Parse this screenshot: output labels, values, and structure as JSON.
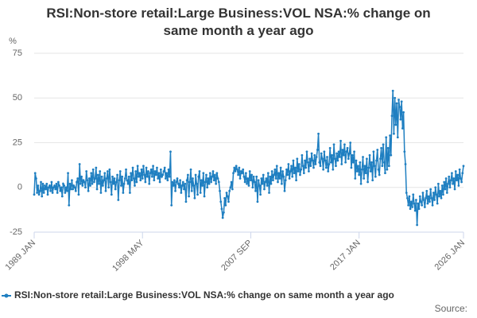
{
  "chart_data": {
    "type": "line",
    "title": "RSI:Non-store retail:Large Business:VOL NSA:% change on same month a year ago",
    "y_label": "%",
    "source": "Source:",
    "categories": [
      "1989 JAN",
      null,
      null,
      null,
      null,
      null,
      null,
      null,
      null,
      null,
      null,
      null,
      null,
      null,
      null,
      null,
      null,
      null,
      null,
      null,
      null,
      null,
      null,
      null,
      null,
      null,
      null,
      null,
      null,
      null,
      null,
      null,
      null,
      null,
      null,
      null,
      null,
      null,
      null,
      null,
      null,
      null,
      null,
      null,
      null,
      null,
      null,
      null,
      null,
      null,
      null,
      null,
      null,
      null,
      null,
      null,
      null,
      null,
      null,
      null,
      null,
      null,
      null,
      null,
      null,
      null,
      null,
      null,
      null,
      null,
      null,
      null,
      null,
      null,
      null,
      null,
      null,
      null,
      null,
      null,
      null,
      null,
      null,
      null,
      null,
      null,
      null,
      null,
      null,
      null,
      null,
      null,
      null,
      null,
      null,
      null,
      null,
      null,
      null,
      null,
      null,
      null,
      null,
      null,
      null,
      null,
      null,
      null,
      null,
      null,
      null,
      null,
      "1998 MAY",
      null,
      null,
      null,
      null,
      null,
      null,
      null,
      null,
      null,
      null,
      null,
      null,
      null,
      null,
      null,
      null,
      null,
      null,
      null,
      null,
      null,
      null,
      null,
      null,
      null,
      null,
      null,
      null,
      null,
      null,
      null,
      null,
      null,
      null,
      null,
      null,
      null,
      null,
      null,
      null,
      null,
      null,
      null,
      null,
      null,
      null,
      null,
      null,
      null,
      null,
      null,
      null,
      null,
      null,
      null,
      null,
      null,
      null,
      null,
      null,
      null,
      null,
      null,
      null,
      null,
      null,
      null,
      null,
      null,
      null,
      null,
      null,
      null,
      null,
      null,
      null,
      null,
      null,
      null,
      null,
      null,
      null,
      null,
      null,
      null,
      null,
      null,
      null,
      null,
      null,
      null,
      null,
      null,
      null,
      null,
      null,
      null,
      null,
      null,
      null,
      null,
      null,
      null,
      null,
      null,
      null,
      null,
      null,
      null,
      null,
      null,
      "2007 SEP",
      null,
      null,
      null,
      null,
      null,
      null,
      null,
      null,
      null,
      null,
      null,
      null,
      null,
      null,
      null,
      null,
      null,
      null,
      null,
      null,
      null,
      null,
      null,
      null,
      null,
      null,
      null,
      null,
      null,
      null,
      null,
      null,
      null,
      null,
      null,
      null,
      null,
      null,
      null,
      null,
      null,
      null,
      null,
      null,
      null,
      null,
      null,
      null,
      null,
      null,
      null,
      null,
      null,
      null,
      null,
      null,
      null,
      null,
      null,
      null,
      null,
      null,
      null,
      null,
      null,
      null,
      null,
      null,
      null,
      null,
      null,
      null,
      null,
      null,
      null,
      null,
      null,
      null,
      null,
      null,
      null,
      null,
      null,
      null,
      null,
      null,
      null,
      null,
      null,
      null,
      null,
      null,
      null,
      null,
      null,
      null,
      null,
      null,
      null,
      null,
      null,
      null,
      null,
      null,
      null,
      null,
      null,
      null,
      null,
      null,
      null,
      "2017 JAN",
      null,
      null,
      null,
      null,
      null,
      null,
      null,
      null,
      null,
      null,
      null,
      null,
      null,
      null,
      null,
      null,
      null,
      null,
      null,
      null,
      null,
      null,
      null,
      null,
      null,
      null,
      null,
      null,
      null,
      null,
      null,
      null,
      null,
      null,
      null,
      null,
      null,
      null,
      null,
      null,
      null,
      null,
      null,
      null,
      null,
      null,
      null,
      null,
      null,
      null,
      null,
      null,
      null,
      null,
      null,
      null,
      null,
      null,
      null,
      null,
      null,
      null,
      null,
      null,
      null,
      null,
      null,
      null,
      null,
      null,
      null,
      null,
      null,
      null,
      null,
      null,
      null,
      null,
      null,
      null,
      null,
      null,
      null,
      null,
      null,
      null,
      null,
      null,
      null,
      null,
      null,
      null,
      null,
      null,
      null,
      null,
      null,
      null,
      null,
      null,
      null,
      null,
      null,
      null,
      null,
      null,
      null,
      "2026 JAN"
    ],
    "series": [
      {
        "name": "RSI:Non-store retail:Large Business:VOL NSA:% change on same month a year ago",
        "color": "#1f7fc1",
        "values": [
          -4,
          8,
          5,
          -3,
          1,
          -4,
          -2,
          3,
          -5,
          2,
          -3,
          1,
          -1,
          2,
          -4,
          0,
          1,
          -2,
          3,
          -3,
          0,
          1,
          -1,
          2,
          -3,
          3,
          1,
          -2,
          0,
          -5,
          2,
          1,
          -3,
          0,
          -2,
          8,
          -10,
          2,
          -1,
          4,
          -1,
          1,
          0,
          -2,
          3,
          5,
          -4,
          13,
          2,
          6,
          1,
          4,
          3,
          0,
          9,
          4,
          -2,
          5,
          1,
          8,
          2,
          10,
          3,
          5,
          11,
          -1,
          7,
          2,
          9,
          -3,
          6,
          1,
          4,
          8,
          -2,
          5,
          9,
          0,
          10,
          3,
          -4,
          6,
          2,
          5,
          -1,
          3,
          7,
          -7,
          4,
          9,
          1,
          6,
          -3,
          2,
          5,
          10,
          4,
          2,
          6,
          -3,
          8,
          4,
          11,
          5,
          1,
          9,
          3,
          12,
          6,
          8,
          4,
          10,
          5,
          12,
          7,
          3,
          11,
          6,
          9,
          2,
          8,
          10,
          6,
          12,
          4,
          9,
          7,
          11,
          5,
          8,
          3,
          10,
          6,
          7,
          9,
          11,
          5,
          8,
          4,
          10,
          6,
          20,
          -10,
          3,
          1,
          4,
          -2,
          3,
          5,
          2,
          0,
          4,
          -3,
          1,
          3,
          -1,
          2,
          -8,
          4,
          7,
          -5,
          3,
          10,
          -2,
          5,
          1,
          -6,
          7,
          2,
          -4,
          6,
          9,
          -3,
          4,
          1,
          8,
          -5,
          3,
          7,
          0,
          5,
          2,
          8,
          3,
          6,
          9,
          4,
          7,
          2,
          8,
          5,
          3,
          -2,
          -8,
          -12,
          -17,
          -14,
          -6,
          -10,
          -3,
          -5,
          -8,
          -2,
          0,
          3,
          -1,
          8,
          11,
          9,
          12,
          10,
          7,
          11,
          5,
          9,
          8,
          10,
          6,
          3,
          8,
          2,
          5,
          1,
          9,
          4,
          7,
          0,
          6,
          3,
          -2,
          6,
          -8,
          4,
          1,
          -4,
          5,
          2,
          7,
          -1,
          3,
          5,
          1,
          8,
          -3,
          6,
          2,
          9,
          4,
          7,
          10,
          5,
          12,
          3,
          8,
          5,
          11,
          2,
          9,
          6,
          -2,
          4,
          10,
          7,
          13,
          5,
          9,
          12,
          6,
          15,
          8,
          11,
          4,
          16,
          9,
          13,
          7,
          10,
          18,
          12,
          8,
          15,
          11,
          20,
          14,
          9,
          16,
          12,
          19,
          15,
          11,
          18,
          13,
          17,
          21,
          30,
          14,
          12,
          19,
          16,
          10,
          20,
          15,
          11,
          17,
          9,
          13,
          22,
          14,
          18,
          10,
          24,
          16,
          12,
          19,
          15,
          20,
          17,
          26,
          13,
          21,
          18,
          24,
          14,
          20,
          22,
          16,
          19,
          25,
          11,
          18,
          14,
          20,
          5,
          15,
          9,
          12,
          7,
          14,
          2,
          10,
          17,
          5,
          12,
          8,
          16,
          3,
          11,
          18,
          9,
          14,
          4,
          20,
          12,
          6,
          15,
          21,
          10,
          7,
          16,
          22,
          12,
          24,
          14,
          8,
          28,
          10,
          22,
          12,
          29,
          18,
          40,
          54,
          30,
          50,
          35,
          47,
          28,
          49,
          45,
          38,
          48,
          33,
          42,
          20,
          13,
          -3,
          -6,
          -10,
          -5,
          -12,
          -8,
          -11,
          -4,
          -9,
          -13,
          -7,
          -21,
          -9,
          -12,
          -5,
          -8,
          -10,
          -3,
          -7,
          -11,
          -6,
          -2,
          -9,
          -5,
          -8,
          -1,
          -6,
          -10,
          -3,
          -7,
          0,
          -4,
          -9,
          2,
          -5,
          -2,
          -6,
          1,
          -4,
          3,
          -1,
          5,
          -3,
          2,
          6,
          0,
          4,
          8,
          2,
          5,
          -1,
          9,
          4,
          7,
          1,
          10,
          5,
          3,
          8,
          12
        ]
      }
    ],
    "ylim": [
      -25,
      75
    ],
    "yticks": [
      -25,
      0,
      25,
      50,
      75
    ],
    "grid": true,
    "legend": "bottom"
  }
}
